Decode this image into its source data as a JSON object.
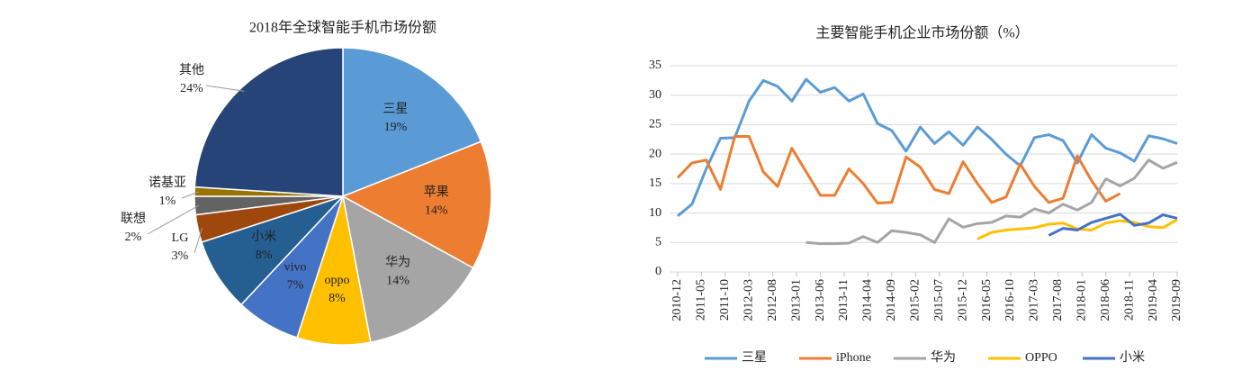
{
  "chart_data": [
    {
      "type": "pie",
      "title": "2018年全球智能手机市场份额",
      "categories": [
        "三星",
        "苹果",
        "华为",
        "oppo",
        "vivo",
        "小米",
        "LG",
        "联想",
        "诺基亚",
        "其他"
      ],
      "values": [
        19,
        14,
        14,
        8,
        7,
        8,
        3,
        2,
        1,
        24
      ],
      "value_labels": [
        "19%",
        "14%",
        "14%",
        "8%",
        "7%",
        "8%",
        "3%",
        "2%",
        "1%",
        "24%"
      ],
      "colors": [
        "#5b9bd5",
        "#ed7d31",
        "#a5a5a5",
        "#ffc000",
        "#4472c4",
        "#255e91",
        "#9e480e",
        "#636363",
        "#997300",
        "#264478"
      ]
    },
    {
      "type": "line",
      "title": "主要智能手机企业市场份额（%）",
      "x": [
        "2010-12",
        "2011-03",
        "2011-06",
        "2011-09",
        "2011-12",
        "2012-03",
        "2012-06",
        "2012-09",
        "2012-12",
        "2013-03",
        "2013-06",
        "2013-09",
        "2013-12",
        "2014-03",
        "2014-06",
        "2014-09",
        "2014-12",
        "2015-03",
        "2015-06",
        "2015-09",
        "2015-12",
        "2016-03",
        "2016-06",
        "2016-09",
        "2016-12",
        "2017-03",
        "2017-06",
        "2017-09",
        "2017-12",
        "2018-03",
        "2018-06",
        "2018-09",
        "2018-12",
        "2019-03",
        "2019-06",
        "2019-09"
      ],
      "xlim": [
        "2010-12",
        "2019-09"
      ],
      "xticks": [
        "2010-12",
        "2011-05",
        "2011-10",
        "2012-03",
        "2012-08",
        "2013-01",
        "2013-06",
        "2013-11",
        "2014-04",
        "2014-09",
        "2015-02",
        "2015-07",
        "2015-12",
        "2016-05",
        "2016-10",
        "2017-03",
        "2017-08",
        "2018-01",
        "2018-06",
        "2018-11",
        "2019-04",
        "2019-09"
      ],
      "ylim": [
        0,
        35
      ],
      "yticks": [
        0,
        5,
        10,
        15,
        20,
        25,
        30,
        35
      ],
      "grid": true,
      "series": [
        {
          "name": "三星",
          "color": "#5b9bd5",
          "values": [
            9.5,
            11.5,
            17.5,
            22.7,
            22.8,
            29,
            32.5,
            31.5,
            29,
            32.7,
            30.5,
            31.3,
            29,
            30.2,
            25.2,
            24,
            20.5,
            24.6,
            21.8,
            23.8,
            21.5,
            24.6,
            22.5,
            20,
            18,
            22.8,
            23.3,
            22.3,
            18.5,
            23.3,
            21,
            20.2,
            18.8,
            23.1,
            22.6,
            21.8
          ]
        },
        {
          "name": "iPhone",
          "color": "#ed7d31",
          "values": [
            16,
            18.5,
            19,
            14,
            23,
            23,
            17,
            14.5,
            21,
            17,
            13,
            13,
            17.5,
            15,
            11.7,
            11.8,
            19.5,
            17.8,
            14,
            13.3,
            18.7,
            15,
            11.8,
            12.7,
            18.3,
            14.5,
            11.8,
            12.5,
            19.7,
            15.5,
            12,
            13.3,
            null,
            null,
            null,
            null
          ]
        },
        {
          "name": "华为",
          "color": "#a5a5a5",
          "values": [
            null,
            null,
            null,
            null,
            null,
            null,
            null,
            null,
            null,
            5,
            4.8,
            4.8,
            4.9,
            6,
            5,
            7,
            6.7,
            6.3,
            5,
            9,
            7.6,
            8.2,
            8.4,
            9.5,
            9.3,
            10.7,
            10,
            11.5,
            10.5,
            11.8,
            15.8,
            14.6,
            15.9,
            19,
            17.6,
            18.6
          ]
        },
        {
          "name": "OPPO",
          "color": "#ffc000",
          "values": [
            null,
            null,
            null,
            null,
            null,
            null,
            null,
            null,
            null,
            null,
            null,
            null,
            null,
            null,
            null,
            null,
            null,
            null,
            null,
            null,
            null,
            5.6,
            6.7,
            7.1,
            7.3,
            7.5,
            8.1,
            8.3,
            7.3,
            7.1,
            8.3,
            8.7,
            8.4,
            7.7,
            7.5,
            8.9
          ]
        },
        {
          "name": "小米",
          "color": "#4472c4",
          "values": [
            null,
            null,
            null,
            null,
            null,
            null,
            null,
            null,
            null,
            null,
            null,
            null,
            null,
            null,
            null,
            null,
            null,
            null,
            null,
            null,
            null,
            null,
            null,
            null,
            null,
            null,
            6.2,
            7.4,
            7.1,
            8.4,
            9.1,
            9.8,
            7.9,
            8.3,
            9.7,
            9.1
          ]
        }
      ]
    }
  ]
}
